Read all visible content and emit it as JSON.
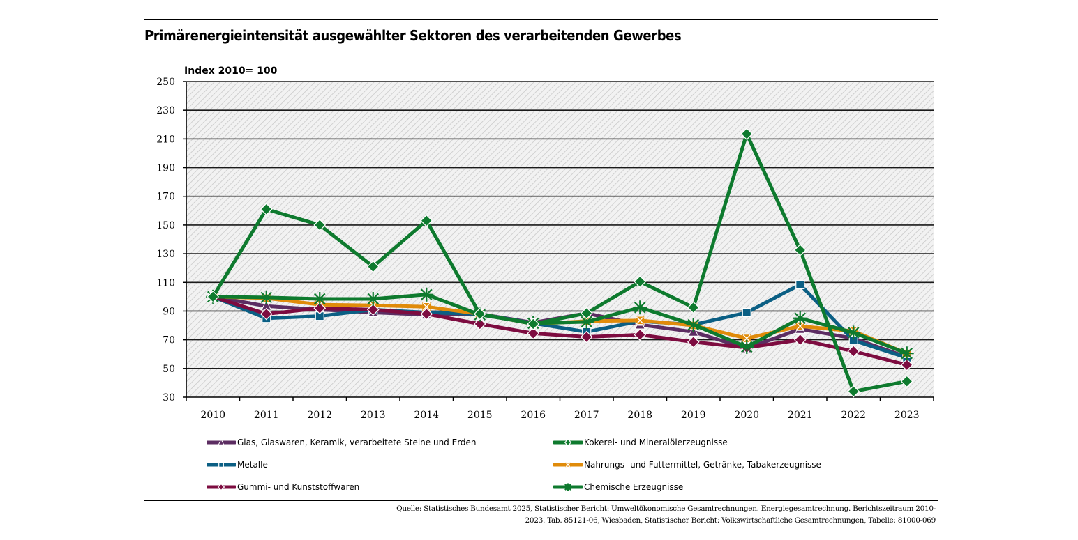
{
  "chart_data": {
    "type": "line",
    "title": "Primärenergieintensität ausgewählter Sektoren des verarbeitenden Gewerbes",
    "ylabel": "Index 2010= 100",
    "xlabel": "",
    "ylim": [
      30,
      250
    ],
    "yticks": [
      "250",
      "230",
      "210",
      "190",
      "170",
      "150",
      "130",
      "110",
      "90",
      "70",
      "50",
      "30"
    ],
    "ytick_values": [
      250,
      230,
      210,
      190,
      170,
      150,
      130,
      110,
      90,
      70,
      50,
      30
    ],
    "grid": true,
    "legend_position": "bottom",
    "categories": [
      "2010",
      "2011",
      "2012",
      "2013",
      "2014",
      "2015",
      "2016",
      "2017",
      "2018",
      "2019",
      "2020",
      "2021",
      "2022",
      "2023"
    ],
    "series": [
      {
        "name": "Glas, Glaswaren, Keramik, verarbeitete Steine und Erden",
        "color": "#5c2d62",
        "marker": "triangle",
        "values": [
          100,
          93.5,
          91,
          89,
          87.5,
          88,
          82,
          88.5,
          80.5,
          75.5,
          64,
          77.5,
          71,
          58
        ]
      },
      {
        "name": "Metalle",
        "color": "#0b5f84",
        "marker": "square",
        "values": [
          100,
          85,
          86.5,
          91,
          89,
          88,
          81.5,
          75.5,
          83,
          80.5,
          89,
          108.5,
          69.5,
          57.5
        ]
      },
      {
        "name": "Nahrungs- und Futtermittel, Getränke, Tabakerzeugnisse",
        "color": "#e08b0a",
        "marker": "x",
        "values": [
          100,
          99,
          94.5,
          94,
          93,
          88,
          81,
          83,
          83.5,
          80,
          71,
          79.5,
          76,
          60.5
        ]
      },
      {
        "name": "Gummi- und Kunststoffwaren",
        "color": "#7d0c40",
        "marker": "diamond",
        "values": [
          100,
          88,
          92,
          91,
          88,
          81,
          74.5,
          72,
          73.5,
          68.5,
          64.5,
          70,
          62,
          52.5
        ]
      },
      {
        "name": "Chemische Erzeugnisse",
        "color": "#0e7a2e",
        "marker": "star",
        "values": [
          100,
          99.5,
          98.5,
          98.5,
          101.5,
          87.5,
          81.5,
          82.5,
          92.5,
          80.5,
          65,
          85,
          75,
          60.5
        ]
      },
      {
        "name": "Kokerei- und Mineralölerzeugnisse",
        "color": "#0e7a2e",
        "marker": "diamond",
        "values": [
          100,
          161,
          150,
          121,
          153,
          88,
          81,
          88.5,
          110.5,
          92.5,
          213.5,
          132.5,
          34,
          41
        ]
      }
    ],
    "legend": [
      {
        "name": "Glas, Glaswaren, Keramik, verarbeitete Steine und Erden",
        "color": "#5c2d62",
        "marker": "triangle"
      },
      {
        "name": "Kokerei- und Mineralölerzeugnisse",
        "color": "#0e7a2e",
        "marker": "diamond"
      },
      {
        "name": "Metalle",
        "color": "#0b5f84",
        "marker": "square"
      },
      {
        "name": "Nahrungs- und Futtermittel, Getränke, Tabakerzeugnisse",
        "color": "#e08b0a",
        "marker": "x"
      },
      {
        "name": "Gummi- und Kunststoffwaren",
        "color": "#7d0c40",
        "marker": "diamond"
      },
      {
        "name": "Chemische Erzeugnisse",
        "color": "#0e7a2e",
        "marker": "star"
      }
    ]
  },
  "source_lines": [
    "Quelle: Statistisches Bundesamt 2025, Statistischer Bericht: Umweltökonomische Gesamtrechnungen. Energiegesamtrechnung. Berichtszeitraum 2010-",
    "2023. Tab. 85121-06, Wiesbaden, Statistischer Bericht: Volkswirtschaftliche Gesamtrechnungen, Tabelle: 81000-069"
  ]
}
